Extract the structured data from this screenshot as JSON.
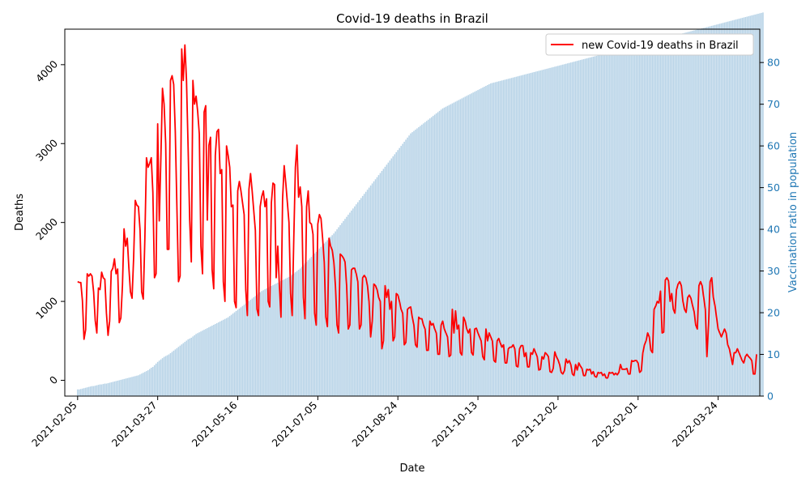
{
  "chart_data": {
    "type": "line",
    "title": "Covid-19 deaths in Brazil",
    "xlabel": "Date",
    "ylabel": "Deaths",
    "y2label": "Vaccination ratio in population",
    "x_tick_labels": [
      "2021-02-05",
      "2021-03-27",
      "2021-05-16",
      "2021-07-05",
      "2021-08-24",
      "2021-10-13",
      "2021-12-02",
      "2022-02-01",
      "2022-03-24"
    ],
    "y_ticks": [
      0,
      1000,
      2000,
      3000,
      4000
    ],
    "y2_ticks": [
      0,
      10,
      20,
      30,
      40,
      50,
      60,
      70,
      80
    ],
    "ylim": [
      -200,
      4450
    ],
    "y2lim": [
      0,
      88
    ],
    "x_range_days": [
      -8,
      426
    ],
    "legend": {
      "position": "top-right",
      "entries": [
        "new Covid-19 deaths in Brazil"
      ]
    },
    "colors": {
      "line": "#ff0000",
      "bars": "#1f77b4",
      "y2axis": "#1f77b4"
    },
    "series": [
      {
        "name": "new Covid-19 deaths in Brazil",
        "kind": "line",
        "axis": "left",
        "x_start": "2021-02-05",
        "values": [
          1250,
          1240,
          1240,
          1010,
          520,
          640,
          1350,
          1320,
          1350,
          1320,
          1120,
          760,
          600,
          1170,
          1150,
          1370,
          1300,
          1280,
          850,
          570,
          750,
          1380,
          1420,
          1540,
          1350,
          1410,
          730,
          790,
          1200,
          1920,
          1700,
          1800,
          1430,
          1120,
          1040,
          1560,
          2280,
          2220,
          2200,
          1900,
          1120,
          1030,
          1800,
          2820,
          2700,
          2750,
          2820,
          2380,
          1300,
          1350,
          3250,
          2020,
          2820,
          3700,
          3500,
          3000,
          1660,
          1660,
          3800,
          3860,
          3750,
          3150,
          2200,
          1250,
          1320,
          4200,
          3800,
          4250,
          3800,
          2950,
          2030,
          1500,
          3800,
          3500,
          3600,
          3400,
          3120,
          1700,
          1350,
          3400,
          3480,
          2030,
          2980,
          3080,
          1400,
          1160,
          2850,
          3150,
          3180,
          2620,
          2670,
          1250,
          1000,
          2970,
          2850,
          2700,
          2200,
          2220,
          1000,
          920,
          2400,
          2520,
          2400,
          2250,
          2100,
          1150,
          820,
          2420,
          2620,
          2400,
          2150,
          1900,
          900,
          820,
          2200,
          2330,
          2400,
          2200,
          2300,
          1000,
          930,
          2250,
          2500,
          2480,
          1300,
          1700,
          1200,
          800,
          2300,
          2720,
          2500,
          2250,
          2000,
          1100,
          820,
          1800,
          2700,
          2980,
          2320,
          2450,
          2200,
          1050,
          780,
          2200,
          2400,
          2000,
          1980,
          1850,
          850,
          700,
          1980,
          2100,
          2050,
          1800,
          1500,
          800,
          680,
          1800,
          1700,
          1650,
          1500,
          1200,
          700,
          600,
          1600,
          1580,
          1550,
          1500,
          1200,
          650,
          700,
          1400,
          1420,
          1420,
          1350,
          1250,
          650,
          700,
          1300,
          1330,
          1300,
          1200,
          1000,
          550,
          750,
          1220,
          1200,
          1150,
          1050,
          1000,
          400,
          500,
          1200,
          1050,
          1150,
          900,
          1000,
          500,
          550,
          1100,
          1080,
          1000,
          900,
          850,
          450,
          480,
          900,
          920,
          930,
          800,
          700,
          450,
          420,
          800,
          780,
          780,
          700,
          650,
          380,
          380,
          750,
          700,
          720,
          650,
          600,
          330,
          330,
          700,
          750,
          650,
          600,
          550,
          300,
          320,
          900,
          600,
          880,
          650,
          700,
          350,
          320,
          800,
          750,
          650,
          600,
          650,
          350,
          320,
          650,
          660,
          600,
          550,
          500,
          300,
          260,
          650,
          500,
          600,
          550,
          500,
          250,
          230,
          500,
          530,
          470,
          420,
          450,
          220,
          220,
          400,
          420,
          420,
          450,
          400,
          180,
          170,
          400,
          440,
          440,
          300,
          350,
          170,
          170,
          350,
          330,
          400,
          350,
          300,
          130,
          140,
          300,
          270,
          350,
          330,
          300,
          110,
          100,
          150,
          360,
          300,
          260,
          200,
          100,
          80,
          120,
          270,
          220,
          250,
          200,
          80,
          60,
          200,
          130,
          220,
          180,
          150,
          60,
          60,
          140,
          130,
          140,
          80,
          110,
          50,
          40,
          100,
          90,
          100,
          60,
          80,
          30,
          30,
          100,
          90,
          100,
          70,
          90,
          70,
          100,
          200,
          140,
          140,
          140,
          150,
          80,
          80,
          250,
          240,
          250,
          250,
          220,
          100,
          120,
          350,
          450,
          500,
          600,
          550,
          380,
          350,
          900,
          940,
          1000,
          980,
          1130,
          600,
          610,
          1270,
          1300,
          1260,
          1000,
          1100,
          900,
          850,
          1150,
          1220,
          1250,
          1200,
          1000,
          900,
          860,
          1050,
          1080,
          1040,
          950,
          870,
          700,
          650,
          1200,
          1250,
          1200,
          1050,
          900,
          300,
          700,
          1250,
          1300,
          1050,
          950,
          800,
          650,
          600,
          550,
          600,
          650,
          600,
          450,
          400,
          300,
          200,
          350,
          350,
          400,
          350,
          300,
          250,
          220,
          300,
          330,
          300,
          280,
          250,
          80,
          80,
          330
        ]
      },
      {
        "name": "",
        "kind": "bar",
        "axis": "right",
        "x_start": "2021-02-05",
        "values": [
          1.6,
          1.6,
          1.7,
          1.8,
          1.9,
          2.0,
          2.1,
          2.2,
          2.3,
          2.4,
          2.4,
          2.5,
          2.6,
          2.7,
          2.8,
          2.8,
          2.9,
          3.0,
          3.0,
          3.1,
          3.2,
          3.3,
          3.4,
          3.5,
          3.6,
          3.7,
          3.8,
          3.9,
          4.0,
          4.1,
          4.2,
          4.3,
          4.4,
          4.5,
          4.6,
          4.7,
          4.8,
          4.9,
          5.0,
          5.2,
          5.4,
          5.6,
          5.8,
          6.0,
          6.2,
          6.5,
          6.8,
          7.0,
          7.4,
          7.8,
          8.2,
          8.5,
          8.8,
          9.1,
          9.4,
          9.6,
          9.8,
          10.0,
          10.3,
          10.6,
          10.9,
          11.2,
          11.5,
          11.8,
          12.1,
          12.4,
          12.7,
          13.0,
          13.3,
          13.6,
          13.8,
          14.0,
          14.3,
          14.6,
          14.9,
          15.1,
          15.3,
          15.5,
          15.7,
          15.9,
          16.1,
          16.3,
          16.5,
          16.7,
          16.9,
          17.1,
          17.3,
          17.5,
          17.7,
          17.9,
          18.1,
          18.3,
          18.5,
          18.7,
          18.9,
          19.2,
          19.5,
          19.8,
          20.1,
          20.4,
          20.7,
          21.0,
          21.3,
          21.6,
          21.9,
          22.2,
          22.5,
          22.8,
          23.1,
          23.4,
          23.7,
          24.0,
          24.3,
          24.6,
          24.9,
          25.2,
          25.4,
          25.6,
          25.8,
          26.0,
          26.2,
          26.4,
          26.6,
          26.8,
          27.0,
          27.2,
          27.4,
          27.6,
          27.8,
          28.0,
          28.2,
          28.4,
          28.6,
          28.8,
          29.1,
          29.4,
          29.7,
          30.0,
          30.3,
          30.6,
          31.0,
          31.4,
          31.8,
          32.2,
          32.6,
          33.0,
          33.4,
          33.8,
          34.2,
          34.6,
          35.0,
          35.4,
          35.8,
          36.2,
          36.6,
          37.0,
          37.4,
          37.8,
          38.2,
          38.6,
          39.0,
          39.5,
          40.0,
          40.5,
          41.0,
          41.5,
          42.0,
          42.5,
          43.0,
          43.5,
          44.0,
          44.5,
          45.0,
          45.5,
          46.0,
          46.5,
          47.0,
          47.5,
          48.0,
          48.5,
          49.0,
          49.5,
          50.0,
          50.5,
          51.0,
          51.5,
          52.0,
          52.5,
          53.0,
          53.5,
          54.0,
          54.5,
          55.0,
          55.5,
          56.0,
          56.5,
          57.0,
          57.5,
          58.0,
          58.5,
          59.0,
          59.5,
          60.0,
          60.5,
          61.0,
          61.5,
          62.0,
          62.5,
          63.0,
          63.3,
          63.6,
          63.9,
          64.2,
          64.5,
          64.8,
          65.1,
          65.4,
          65.7,
          66.0,
          66.3,
          66.6,
          66.9,
          67.2,
          67.5,
          67.8,
          68.1,
          68.4,
          68.7,
          69.0,
          69.2,
          69.4,
          69.6,
          69.8,
          70.0,
          70.2,
          70.4,
          70.6,
          70.8,
          71.0,
          71.2,
          71.4,
          71.6,
          71.8,
          72.0,
          72.2,
          72.4,
          72.6,
          72.8,
          73.0,
          73.2,
          73.4,
          73.6,
          73.8,
          74.0,
          74.2,
          74.4,
          74.6,
          74.8,
          75.0,
          75.1,
          75.2,
          75.3,
          75.4,
          75.5,
          75.6,
          75.7,
          75.8,
          75.9,
          76.0,
          76.1,
          76.2,
          76.3,
          76.4,
          76.5,
          76.6,
          76.7,
          76.8,
          76.9,
          77.0,
          77.1,
          77.2,
          77.3,
          77.4,
          77.5,
          77.6,
          77.7,
          77.8,
          77.9,
          78.0,
          78.1,
          78.2,
          78.3,
          78.4,
          78.5,
          78.6,
          78.7,
          78.8,
          78.9,
          79.0,
          79.1,
          79.2,
          79.3,
          79.4,
          79.5,
          79.6,
          79.7,
          79.8,
          79.9,
          80.0,
          80.1,
          80.2,
          80.3,
          80.4,
          80.5,
          80.6,
          80.7,
          80.8,
          80.9,
          81.0,
          81.1,
          81.2,
          81.3,
          81.4,
          81.5,
          81.6,
          81.7,
          81.8,
          81.9,
          82.0,
          82.1,
          82.2,
          82.3,
          82.4,
          82.5,
          82.6,
          82.7,
          82.8,
          82.9,
          83.0,
          83.1,
          83.2,
          83.3,
          83.4,
          83.5,
          83.6,
          83.7,
          83.8,
          83.9,
          84.0,
          84.1,
          84.2,
          84.3,
          84.4,
          84.5,
          84.6,
          84.7,
          84.8,
          84.9,
          85.0,
          85.1,
          85.2,
          85.3,
          85.4,
          85.5,
          85.6,
          85.7,
          85.8,
          85.9,
          86.0,
          86.1,
          86.2,
          86.3,
          86.4,
          86.5,
          86.6,
          86.7,
          86.8,
          86.9,
          87.0,
          87.1,
          87.2,
          87.3,
          87.4,
          87.5,
          87.6,
          87.7,
          87.8,
          87.9,
          88.0,
          88.1,
          88.2,
          88.3,
          88.4,
          88.5,
          88.6,
          88.7,
          88.8,
          88.9,
          89.0,
          89.1,
          89.2,
          89.3,
          89.4,
          89.5,
          89.6,
          89.7,
          89.8,
          89.9,
          90.0,
          90.1,
          90.2,
          90.3,
          90.4,
          90.5,
          90.6,
          90.7,
          90.8,
          90.9,
          91.0,
          91.1,
          91.2,
          91.3,
          91.4,
          91.5,
          91.6,
          91.7,
          91.8,
          91.9,
          92.0
        ]
      }
    ]
  }
}
